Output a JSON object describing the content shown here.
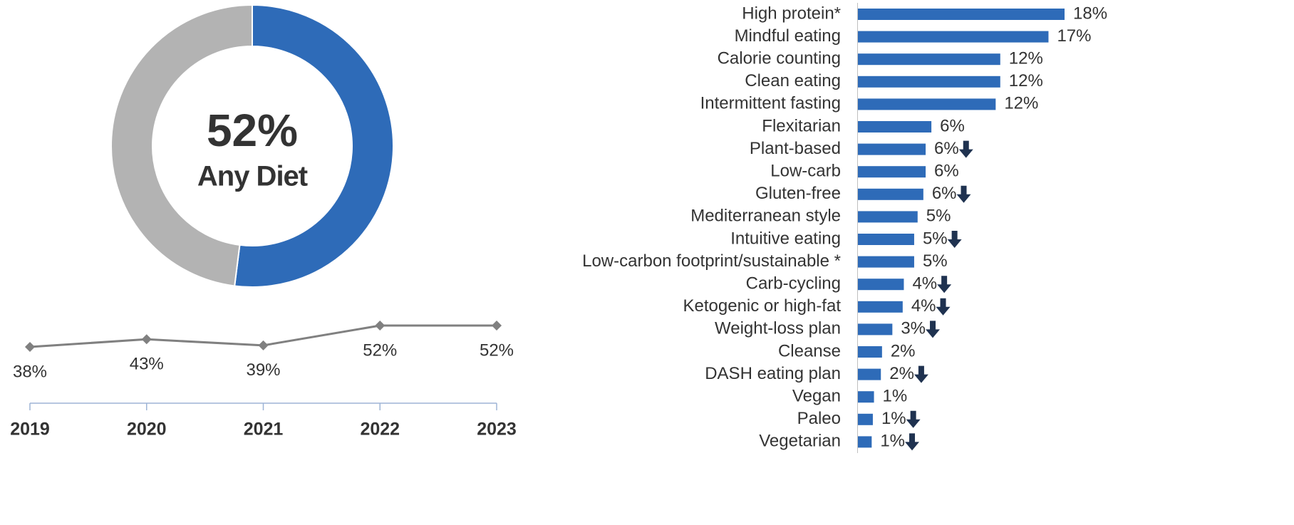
{
  "chart_data": [
    {
      "type": "donut",
      "values": [
        52,
        48
      ],
      "value_labels": [
        "52%",
        null
      ],
      "colors": [
        "#2e6bb8",
        "#b3b3b3"
      ],
      "subtitle": "Any Diet"
    },
    {
      "type": "line",
      "categories": [
        "2019",
        "2020",
        "2021",
        "2022",
        "2023"
      ],
      "values": [
        38,
        43,
        39,
        52,
        52
      ],
      "value_labels": [
        "38%",
        "43%",
        "39%",
        "52%",
        "52%"
      ],
      "color": "#808080"
    },
    {
      "type": "bar",
      "orientation": "horizontal",
      "color": "#2e6bb8",
      "categories": [
        "High protein*",
        "Mindful eating",
        "Calorie counting",
        "Clean eating",
        "Intermittent fasting",
        "Flexitarian",
        "Plant-based",
        "Low-carb",
        "Gluten-free",
        "Mediterranean style",
        "Intuitive eating",
        "Low-carbon footprint/sustainable *",
        "Carb-cycling",
        "Ketogenic or high-fat",
        "Weight-loss plan",
        "Cleanse",
        "DASH eating plan",
        "Vegan",
        "Paleo",
        "Vegetarian"
      ],
      "values": [
        18,
        16.6,
        12.4,
        12.4,
        12.0,
        6.4,
        5.9,
        5.9,
        5.7,
        5.2,
        4.9,
        4.9,
        4.0,
        3.9,
        3.0,
        2.1,
        2.0,
        1.4,
        1.3,
        1.2
      ],
      "value_labels": [
        "18%",
        "17%",
        "12%",
        "12%",
        "12%",
        "6%",
        "6%",
        "6%",
        "6%",
        "5%",
        "5%",
        "5%",
        "4%",
        "4%",
        "3%",
        "2%",
        "2%",
        "1%",
        "1%",
        "1%"
      ],
      "decrease": [
        false,
        false,
        false,
        false,
        false,
        false,
        true,
        false,
        true,
        false,
        true,
        false,
        true,
        true,
        true,
        false,
        true,
        false,
        true,
        true
      ],
      "decrease_color": "#1f3250"
    }
  ]
}
